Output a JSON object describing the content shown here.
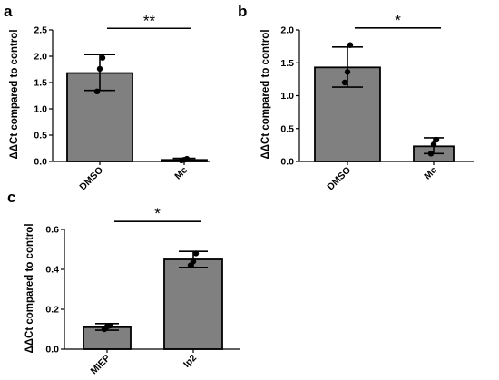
{
  "colors": {
    "bar_fill": "#808080",
    "ink": "#000000"
  },
  "chart_data": [
    {
      "type": "bar",
      "panel": "a",
      "ylabel": "ΔΔCt compared to control",
      "ylim": [
        0,
        2.5
      ],
      "yticks": [
        "0.0",
        "0.5",
        "1.0",
        "1.5",
        "2.0",
        "2.5"
      ],
      "categories": [
        "DMSO",
        "Mc"
      ],
      "values": [
        1.68,
        0.03
      ],
      "error_low": [
        1.35,
        0.01
      ],
      "error_high": [
        2.03,
        0.06
      ],
      "points": [
        [
          1.33,
          1.76,
          1.97
        ],
        [
          0.02,
          0.03,
          0.05
        ]
      ],
      "significance": {
        "label": "**",
        "between": [
          0,
          1
        ],
        "y": 2.53
      }
    },
    {
      "type": "bar",
      "panel": "b",
      "ylabel": "ΔΔCt compared to control",
      "ylim": [
        0,
        2.0
      ],
      "yticks": [
        "0.0",
        "0.5",
        "1.0",
        "1.5",
        "2.0"
      ],
      "categories": [
        "DMSO",
        "Mc"
      ],
      "values": [
        1.43,
        0.23
      ],
      "error_low": [
        1.13,
        0.12
      ],
      "error_high": [
        1.74,
        0.36
      ],
      "points": [
        [
          1.2,
          1.36,
          1.77
        ],
        [
          0.12,
          0.26,
          0.33
        ]
      ],
      "significance": {
        "label": "*",
        "between": [
          0,
          1
        ],
        "y": 2.03
      }
    },
    {
      "type": "bar",
      "panel": "c",
      "ylabel": "ΔΔCt compared to control",
      "ylim": [
        0,
        0.6
      ],
      "yticks": [
        "0.0",
        "0.2",
        "0.4",
        "0.6"
      ],
      "categories": [
        "MIEP",
        "Ip2"
      ],
      "values": [
        0.11,
        0.45
      ],
      "error_low": [
        0.095,
        0.41
      ],
      "error_high": [
        0.128,
        0.49
      ],
      "points": [
        [
          0.1,
          0.113,
          0.118
        ],
        [
          0.42,
          0.44,
          0.48
        ]
      ],
      "significance": {
        "label": "*",
        "between": [
          0,
          1
        ],
        "y": 0.64
      }
    }
  ]
}
